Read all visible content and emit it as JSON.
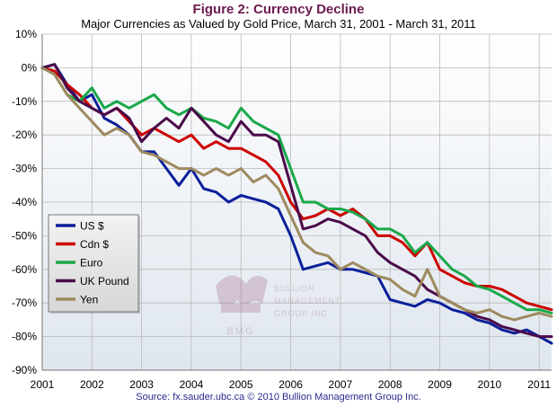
{
  "title": "Figure 2: Currency Decline",
  "subtitle": "Major Currencies as Valued by Gold Price, March 31, 2001 - March 31, 2011",
  "source": "Source: fx.sauder.ubc.ca © 2010 Bullion Management Group Inc.",
  "watermark": {
    "line1": "BULLION",
    "line2": "MANAGEMENT",
    "line3": "GROUP INC",
    "mark": "BMG",
    "color": "#a06080"
  },
  "chart_data": {
    "type": "line",
    "title": "Figure 2: Currency Decline",
    "subtitle": "Major Currencies as Valued by Gold Price, March 31, 2001 - March 31, 2011",
    "xlabel": "",
    "ylabel": "",
    "xlim": [
      2001,
      2011.25
    ],
    "ylim": [
      -90,
      10
    ],
    "yticks": [
      "10%",
      "0%",
      "-10%",
      "-20%",
      "-30%",
      "-40%",
      "-50%",
      "-60%",
      "-70%",
      "-80%",
      "-90%"
    ],
    "ytick_values": [
      10,
      0,
      -10,
      -20,
      -30,
      -40,
      -50,
      -60,
      -70,
      -80,
      -90
    ],
    "xticks": [
      "2001",
      "2002",
      "2003",
      "2004",
      "2005",
      "2006",
      "2007",
      "2008",
      "2009",
      "2010",
      "2011"
    ],
    "xtick_values": [
      2001,
      2002,
      2003,
      2004,
      2005,
      2006,
      2007,
      2008,
      2009,
      2010,
      2011
    ],
    "grid": true,
    "legend_position": "left-middle",
    "x": [
      2001.0,
      2001.25,
      2001.5,
      2001.75,
      2002.0,
      2002.25,
      2002.5,
      2002.75,
      2003.0,
      2003.25,
      2003.5,
      2003.75,
      2004.0,
      2004.25,
      2004.5,
      2004.75,
      2005.0,
      2005.25,
      2005.5,
      2005.75,
      2006.0,
      2006.25,
      2006.5,
      2006.75,
      2007.0,
      2007.25,
      2007.5,
      2007.75,
      2008.0,
      2008.25,
      2008.5,
      2008.75,
      2009.0,
      2009.25,
      2009.5,
      2009.75,
      2010.0,
      2010.25,
      2010.5,
      2010.75,
      2011.0,
      2011.25
    ],
    "series": [
      {
        "name": "US $",
        "color": "#0a1f9a",
        "values": [
          0,
          1,
          -5,
          -10,
          -8,
          -15,
          -17,
          -20,
          -25,
          -25,
          -30,
          -35,
          -30,
          -36,
          -37,
          -40,
          -38,
          -39,
          -40,
          -42,
          -50,
          -60,
          -59,
          -58,
          -60,
          -60,
          -61,
          -62,
          -69,
          -70,
          -71,
          -69,
          -70,
          -72,
          -73,
          -75,
          -76,
          -78,
          -79,
          -78,
          -80,
          -82
        ]
      },
      {
        "name": "Cdn $",
        "color": "#cc0000",
        "values": [
          0,
          -1,
          -5,
          -8,
          -12,
          -14,
          -12,
          -16,
          -20,
          -18,
          -20,
          -22,
          -20,
          -24,
          -22,
          -24,
          -24,
          -26,
          -28,
          -32,
          -40,
          -45,
          -44,
          -42,
          -44,
          -42,
          -45,
          -50,
          -50,
          -52,
          -56,
          -52,
          -60,
          -62,
          -64,
          -65,
          -65,
          -66,
          -68,
          -70,
          -71,
          -72
        ]
      },
      {
        "name": "Euro",
        "color": "#1aa84a",
        "values": [
          0,
          -2,
          -8,
          -10,
          -6,
          -12,
          -10,
          -12,
          -10,
          -8,
          -12,
          -14,
          -12,
          -15,
          -16,
          -18,
          -12,
          -16,
          -18,
          -20,
          -30,
          -40,
          -40,
          -42,
          -42,
          -43,
          -45,
          -48,
          -48,
          -50,
          -55,
          -52,
          -56,
          -60,
          -62,
          -65,
          -66,
          -68,
          -70,
          -72,
          -72,
          -73
        ]
      },
      {
        "name": "UK Pound",
        "color": "#4a0a4a",
        "values": [
          0,
          1,
          -6,
          -10,
          -12,
          -14,
          -12,
          -15,
          -22,
          -18,
          -15,
          -18,
          -12,
          -16,
          -20,
          -22,
          -16,
          -20,
          -20,
          -22,
          -35,
          -48,
          -47,
          -45,
          -46,
          -48,
          -50,
          -55,
          -58,
          -60,
          -62,
          -66,
          -68,
          -70,
          -72,
          -74,
          -75,
          -77,
          -78,
          -79,
          -80,
          -80
        ]
      },
      {
        "name": "Yen",
        "color": "#9e8a5e",
        "values": [
          0,
          -2,
          -8,
          -12,
          -16,
          -20,
          -18,
          -20,
          -25,
          -26,
          -28,
          -30,
          -30,
          -32,
          -30,
          -32,
          -30,
          -34,
          -32,
          -36,
          -44,
          -52,
          -55,
          -56,
          -60,
          -58,
          -60,
          -62,
          -63,
          -66,
          -68,
          -60,
          -68,
          -70,
          -72,
          -73,
          -72,
          -74,
          -75,
          -74,
          -73,
          -74
        ]
      }
    ]
  }
}
